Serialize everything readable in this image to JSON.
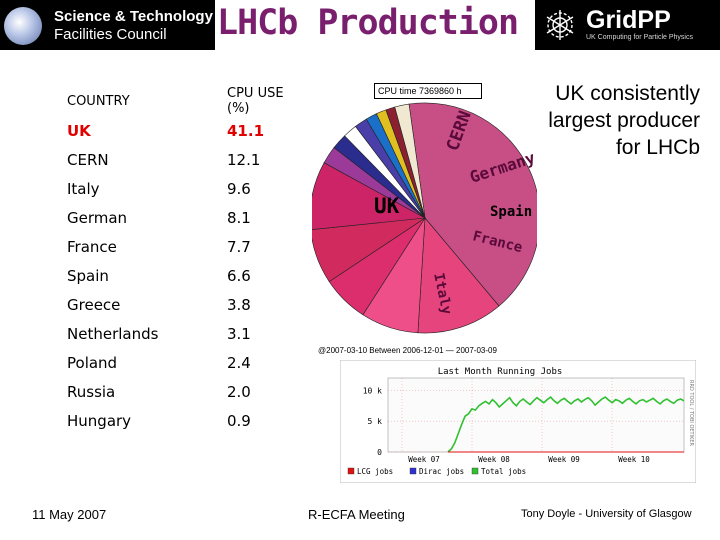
{
  "header": {
    "stfc_line1": "Science & Technology",
    "stfc_line2": "Facilities Council",
    "title": "LHCb Production",
    "gridpp_name": "GridPP",
    "gridpp_sub": "UK Computing for Particle Physics"
  },
  "table": {
    "headers": [
      "COUNTRY",
      "CPU USE (%)"
    ],
    "rows": [
      {
        "country": "UK",
        "value": "41.1"
      },
      {
        "country": "CERN",
        "value": "12.1"
      },
      {
        "country": "Italy",
        "value": "9.6"
      },
      {
        "country": "German",
        "value": "8.1"
      },
      {
        "country": "France",
        "value": "7.7"
      },
      {
        "country": "Spain",
        "value": "6.6"
      },
      {
        "country": "Greece",
        "value": "3.8"
      },
      {
        "country": "Netherlands",
        "value": "3.1"
      },
      {
        "country": "Poland",
        "value": "2.4"
      },
      {
        "country": "Russia",
        "value": "2.0"
      },
      {
        "country": "Hungary",
        "value": "0.9"
      }
    ],
    "highlight_color": "#e00000"
  },
  "cpu_time_label": "CPU time 7369860 h",
  "callout": [
    "UK consistently",
    "largest producer",
    "for LHCb"
  ],
  "chart_data": [
    {
      "type": "pie",
      "start_angle_deg": 352,
      "slices": [
        {
          "label": "UK",
          "value": 41.1,
          "color": "#c84f86"
        },
        {
          "label": "CERN",
          "value": 12.1,
          "color": "#e6447c"
        },
        {
          "label": "Germany",
          "value": 8.1,
          "color": "#ee4f88"
        },
        {
          "label": "Spain",
          "value": 6.6,
          "color": "#dc2e6d"
        },
        {
          "label": "France",
          "value": 7.7,
          "color": "#d12a5f"
        },
        {
          "label": "Italy",
          "value": 9.6,
          "color": "#cc2466"
        },
        {
          "label": "",
          "value": 2.5,
          "color": "#9c3a9a"
        },
        {
          "label": "",
          "value": 2.2,
          "color": "#2a2c8e"
        },
        {
          "label": "",
          "value": 2.0,
          "color": "#ffffff"
        },
        {
          "label": "",
          "value": 1.8,
          "color": "#4a3ea8"
        },
        {
          "label": "",
          "value": 1.6,
          "color": "#1a6fc8"
        },
        {
          "label": "",
          "value": 1.4,
          "color": "#e0c020"
        },
        {
          "label": "",
          "value": 1.3,
          "color": "#8a2030"
        },
        {
          "label": "",
          "value": 2.0,
          "color": "#f0e8d0"
        }
      ],
      "slice_labels": [
        {
          "text": "UK",
          "color": "#000000"
        },
        {
          "text": "CERN",
          "color": "#5a0a3a"
        },
        {
          "text": "Germany",
          "color": "#5a0a3a"
        },
        {
          "text": "Spain",
          "color": "#000000"
        },
        {
          "text": "France",
          "color": "#5a0a3a"
        },
        {
          "text": "Italy",
          "color": "#5a0a3a"
        }
      ]
    },
    {
      "type": "line",
      "title": "Last Month Running Jobs",
      "y_ticks": [
        "10 k",
        "5 k",
        "0"
      ],
      "x_ticks": [
        "Week 07",
        "Week 08",
        "Week 09",
        "Week 10"
      ],
      "ylim": [
        0,
        12000
      ],
      "legend": [
        {
          "name": "LCG jobs",
          "color": "#e01010"
        },
        {
          "name": "Dirac jobs",
          "color": "#3030d0"
        },
        {
          "name": "Total jobs",
          "color": "#30c030"
        }
      ],
      "date_label": "@2007-03-10 Between 2006-12-01 — 2007-03-09",
      "side_label": "RRD TOOL / TOBI OETIKER",
      "series": [
        {
          "name": "Total jobs",
          "color": "#30c030",
          "values": [
            0,
            500,
            1500,
            3000,
            4500,
            5800,
            6200,
            7000,
            6800,
            7500,
            7900,
            8200,
            7800,
            8500,
            8000,
            7300,
            7800,
            8300,
            8800,
            8000,
            7500,
            8200,
            8600,
            8100,
            7700,
            8300,
            8800,
            8400,
            8000,
            8500,
            8900,
            8300,
            7900,
            8400,
            8700,
            8200,
            7800,
            8300,
            8600,
            8100,
            8500,
            8800,
            8300,
            7600,
            8100,
            8600,
            8900,
            8400,
            8000,
            8500,
            8300,
            7900,
            8400,
            8700,
            8200,
            7800,
            8300,
            8500,
            8100,
            8400,
            8700,
            8200,
            7800,
            8300,
            8600,
            8200,
            7900,
            8400,
            8600,
            8300
          ]
        },
        {
          "name": "LCG jobs",
          "color": "#e01010",
          "values": [
            0,
            0,
            0,
            0,
            0,
            0,
            0,
            0,
            0,
            0,
            0,
            0,
            0,
            0,
            0,
            0,
            0,
            0,
            0,
            0,
            0,
            0,
            0,
            0,
            0,
            0,
            0,
            0,
            0,
            0,
            0,
            0,
            0,
            0,
            0,
            0,
            0,
            0,
            0,
            0,
            0,
            0,
            0,
            0,
            0,
            0,
            0,
            0,
            0,
            0,
            0,
            0,
            0,
            0,
            0,
            0,
            0,
            0,
            0,
            0,
            0,
            0,
            0,
            0,
            0,
            0,
            0,
            0,
            0,
            0
          ]
        }
      ]
    }
  ],
  "footer": {
    "date": "11 May 2007",
    "event": "R-ECFA Meeting",
    "author": "Tony Doyle - University of Glasgow"
  }
}
